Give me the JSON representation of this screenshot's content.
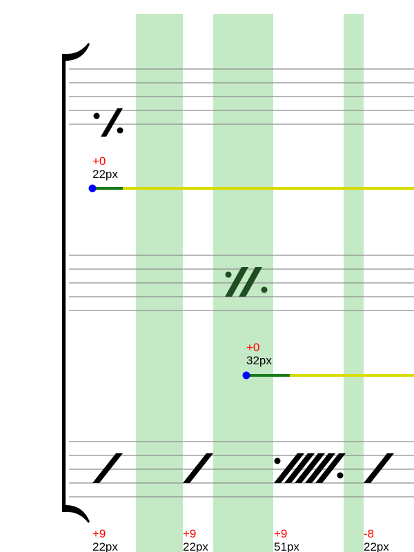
{
  "colors": {
    "band": "#c3e9c5",
    "staff_line": "#8f8f8f",
    "bracket": "#000000",
    "symbol_black": "#000000",
    "symbol_green": "#1e4d22",
    "offset_text": "#ff0000",
    "size_text": "#000000",
    "anchor_dot": "#0000ff",
    "bar_green": "#1a7a1a",
    "bar_yellow": "#d8dc00"
  },
  "staves": [
    {
      "name": "staff-1",
      "symbol_icon": "one-bar-repeat-icon",
      "measure_label": {
        "offset": "+0",
        "size": "22px"
      }
    },
    {
      "name": "staff-2",
      "symbol_icon": "two-bar-repeat-icon",
      "measure_label": {
        "offset": "+0",
        "size": "32px"
      }
    },
    {
      "name": "staff-3",
      "symbol_icons": [
        "slash-icon",
        "slash-icon",
        "multi-slash-repeat-icon",
        "slash-icon"
      ],
      "bottom_labels": [
        {
          "offset": "+9",
          "size": "22px"
        },
        {
          "offset": "+9",
          "size": "22px"
        },
        {
          "offset": "+9",
          "size": "51px"
        },
        {
          "offset": "-8",
          "size": "22px"
        }
      ]
    }
  ]
}
